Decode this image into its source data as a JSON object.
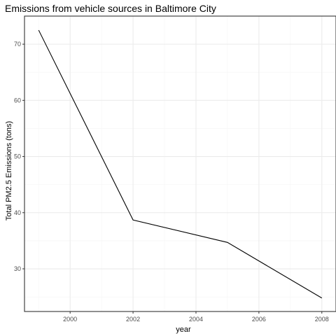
{
  "chart_data": {
    "type": "line",
    "title": "Emissions from vehicle sources in Baltimore City",
    "xlabel": "year",
    "ylabel": "Total PM2.5 Emissions (tons)",
    "x": [
      1999,
      2002,
      2005,
      2008
    ],
    "y": [
      72.5,
      38.7,
      34.7,
      24.8
    ],
    "xlim": [
      1998.55,
      2008.45
    ],
    "ylim": [
      22.4,
      75.0
    ],
    "xticks": [
      2000,
      2002,
      2004,
      2006,
      2008
    ],
    "yticks": [
      30,
      40,
      50,
      60,
      70
    ],
    "xtick_labels": [
      "2000",
      "2002",
      "2004",
      "2006",
      "2008"
    ],
    "ytick_labels": [
      "30",
      "40",
      "50",
      "60",
      "70"
    ],
    "grid": true,
    "line_color": "#000000",
    "grid_major_color": "#ebebeb",
    "grid_minor_color": "#f5f5f5",
    "panel_border_color": "#333333"
  }
}
